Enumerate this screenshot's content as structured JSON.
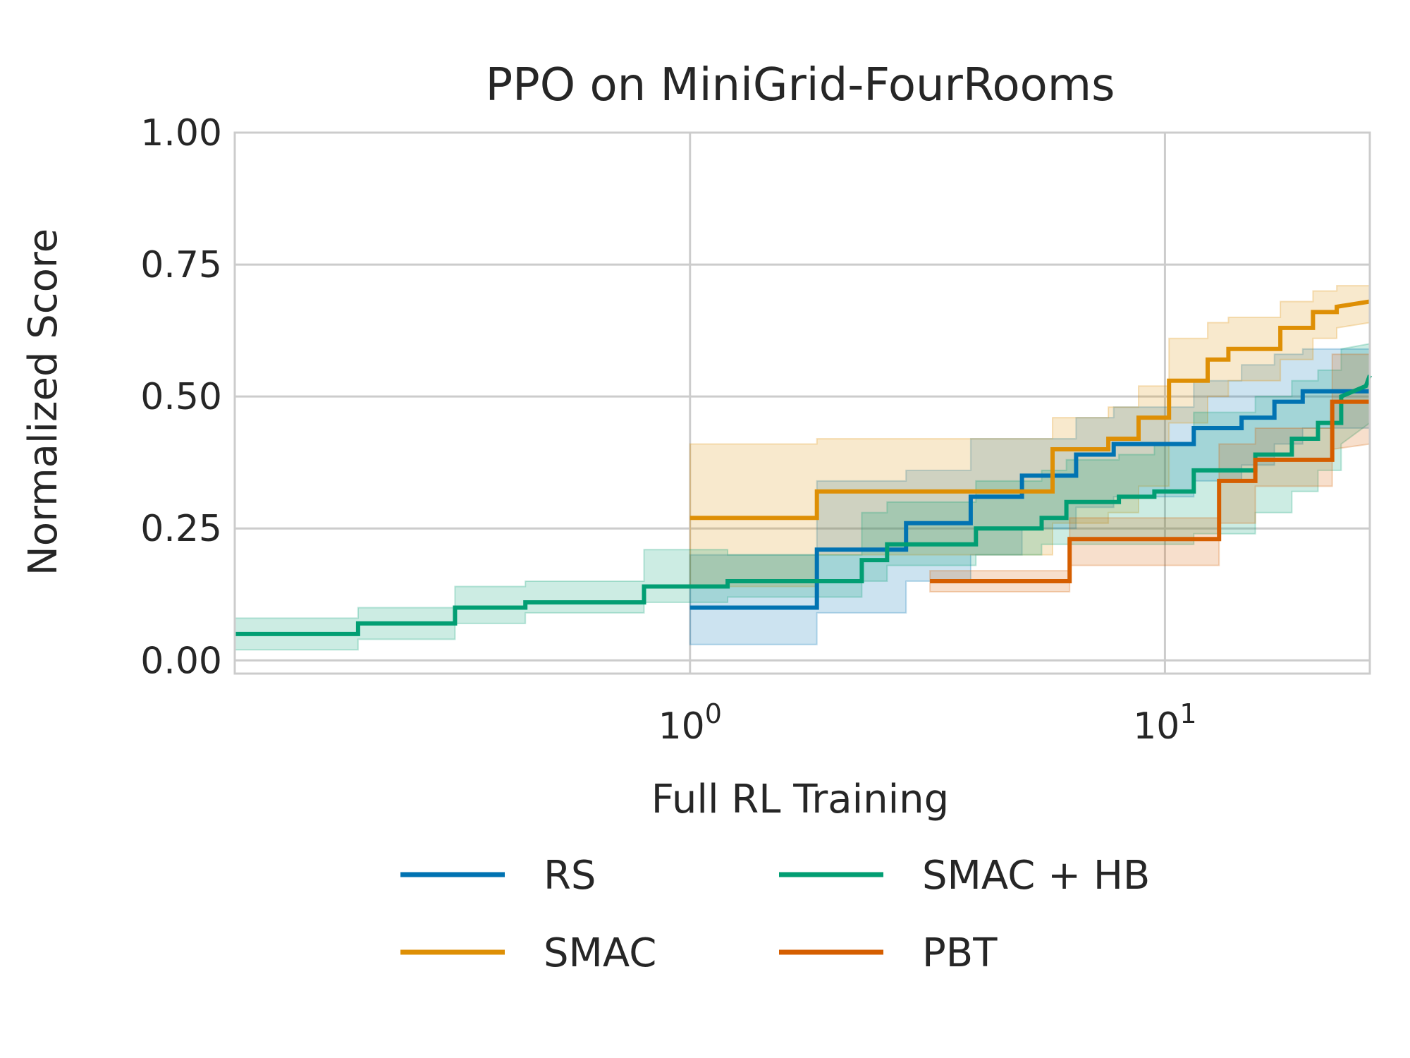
{
  "chart_data": {
    "type": "line",
    "title": "PPO on MiniGrid-FourRooms",
    "xlabel": "Full RL Training",
    "ylabel": "Normalized Score",
    "xscale": "log",
    "xlim": [
      0.11,
      27
    ],
    "ylim": [
      -0.025,
      1.0
    ],
    "yticks": [
      {
        "value": 0.0,
        "label": "0.00"
      },
      {
        "value": 0.25,
        "label": "0.25"
      },
      {
        "value": 0.5,
        "label": "0.50"
      },
      {
        "value": 0.75,
        "label": "0.75"
      },
      {
        "value": 1.0,
        "label": "1.00"
      }
    ],
    "xticks": [
      {
        "value": 1,
        "base": "10",
        "exp": "0"
      },
      {
        "value": 10,
        "base": "10",
        "exp": "1"
      }
    ],
    "grid": true,
    "legend": {
      "placement": "bottom",
      "columns": 2
    },
    "series": [
      {
        "name": "RS",
        "color": "#0173b2",
        "points": [
          [
            1.0,
            0.1
          ],
          [
            1.85,
            0.1
          ],
          [
            1.85,
            0.21
          ],
          [
            2.85,
            0.21
          ],
          [
            2.85,
            0.26
          ],
          [
            3.9,
            0.26
          ],
          [
            3.9,
            0.31
          ],
          [
            5.0,
            0.31
          ],
          [
            5.0,
            0.35
          ],
          [
            6.5,
            0.35
          ],
          [
            6.5,
            0.39
          ],
          [
            7.8,
            0.39
          ],
          [
            7.8,
            0.41
          ],
          [
            11.5,
            0.41
          ],
          [
            11.5,
            0.44
          ],
          [
            14.5,
            0.44
          ],
          [
            14.5,
            0.46
          ],
          [
            17.0,
            0.46
          ],
          [
            17.0,
            0.49
          ],
          [
            19.5,
            0.49
          ],
          [
            19.5,
            0.51
          ],
          [
            27.0,
            0.51
          ]
        ],
        "band": [
          [
            1.0,
            0.03,
            0.2
          ],
          [
            1.85,
            0.03,
            0.2
          ],
          [
            1.85,
            0.09,
            0.34
          ],
          [
            2.85,
            0.09,
            0.34
          ],
          [
            2.85,
            0.15,
            0.36
          ],
          [
            3.9,
            0.15,
            0.36
          ],
          [
            3.9,
            0.2,
            0.42
          ],
          [
            5.0,
            0.2,
            0.42
          ],
          [
            5.0,
            0.25,
            0.42
          ],
          [
            6.5,
            0.25,
            0.42
          ],
          [
            6.5,
            0.29,
            0.46
          ],
          [
            7.8,
            0.29,
            0.46
          ],
          [
            7.8,
            0.31,
            0.48
          ],
          [
            11.5,
            0.31,
            0.48
          ],
          [
            11.5,
            0.34,
            0.53
          ],
          [
            14.5,
            0.34,
            0.53
          ],
          [
            14.5,
            0.37,
            0.56
          ],
          [
            17.0,
            0.37,
            0.56
          ],
          [
            17.0,
            0.41,
            0.58
          ],
          [
            19.5,
            0.41,
            0.58
          ],
          [
            19.5,
            0.44,
            0.59
          ],
          [
            27.0,
            0.44,
            0.59
          ]
        ]
      },
      {
        "name": "SMAC",
        "color": "#de8f05",
        "points": [
          [
            1.0,
            0.27
          ],
          [
            1.85,
            0.27
          ],
          [
            1.85,
            0.32
          ],
          [
            5.8,
            0.32
          ],
          [
            5.8,
            0.4
          ],
          [
            7.6,
            0.4
          ],
          [
            7.6,
            0.42
          ],
          [
            8.8,
            0.42
          ],
          [
            8.8,
            0.46
          ],
          [
            10.2,
            0.46
          ],
          [
            10.2,
            0.53
          ],
          [
            12.3,
            0.53
          ],
          [
            12.3,
            0.57
          ],
          [
            13.6,
            0.57
          ],
          [
            13.6,
            0.59
          ],
          [
            17.5,
            0.59
          ],
          [
            17.5,
            0.63
          ],
          [
            20.5,
            0.63
          ],
          [
            20.5,
            0.66
          ],
          [
            23.0,
            0.66
          ],
          [
            23.0,
            0.67
          ],
          [
            27.0,
            0.68
          ]
        ],
        "band": [
          [
            1.0,
            0.14,
            0.41
          ],
          [
            1.85,
            0.14,
            0.41
          ],
          [
            1.85,
            0.2,
            0.42
          ],
          [
            5.8,
            0.2,
            0.42
          ],
          [
            5.8,
            0.26,
            0.46
          ],
          [
            7.6,
            0.26,
            0.46
          ],
          [
            7.6,
            0.28,
            0.48
          ],
          [
            8.8,
            0.28,
            0.48
          ],
          [
            8.8,
            0.33,
            0.52
          ],
          [
            10.2,
            0.33,
            0.52
          ],
          [
            10.2,
            0.45,
            0.61
          ],
          [
            12.3,
            0.45,
            0.61
          ],
          [
            12.3,
            0.5,
            0.64
          ],
          [
            13.6,
            0.5,
            0.64
          ],
          [
            13.6,
            0.53,
            0.65
          ],
          [
            17.5,
            0.53,
            0.65
          ],
          [
            17.5,
            0.57,
            0.68
          ],
          [
            20.5,
            0.57,
            0.68
          ],
          [
            20.5,
            0.61,
            0.7
          ],
          [
            23.0,
            0.61,
            0.7
          ],
          [
            23.0,
            0.63,
            0.71
          ],
          [
            27.0,
            0.64,
            0.71
          ]
        ]
      },
      {
        "name": "SMAC + HB",
        "color": "#029e73",
        "points": [
          [
            0.11,
            0.05
          ],
          [
            0.2,
            0.05
          ],
          [
            0.2,
            0.07
          ],
          [
            0.32,
            0.07
          ],
          [
            0.32,
            0.1
          ],
          [
            0.45,
            0.1
          ],
          [
            0.45,
            0.11
          ],
          [
            0.8,
            0.11
          ],
          [
            0.8,
            0.14
          ],
          [
            1.2,
            0.14
          ],
          [
            1.2,
            0.15
          ],
          [
            2.3,
            0.15
          ],
          [
            2.3,
            0.19
          ],
          [
            2.6,
            0.19
          ],
          [
            2.6,
            0.22
          ],
          [
            4.0,
            0.22
          ],
          [
            4.0,
            0.25
          ],
          [
            5.5,
            0.25
          ],
          [
            5.5,
            0.27
          ],
          [
            6.2,
            0.27
          ],
          [
            6.2,
            0.3
          ],
          [
            8.0,
            0.3
          ],
          [
            8.0,
            0.31
          ],
          [
            9.5,
            0.31
          ],
          [
            9.5,
            0.32
          ],
          [
            11.5,
            0.32
          ],
          [
            11.5,
            0.36
          ],
          [
            15.5,
            0.36
          ],
          [
            15.5,
            0.39
          ],
          [
            18.5,
            0.39
          ],
          [
            18.5,
            0.42
          ],
          [
            21.0,
            0.42
          ],
          [
            21.0,
            0.45
          ],
          [
            23.5,
            0.45
          ],
          [
            23.5,
            0.5
          ],
          [
            26.5,
            0.52
          ],
          [
            27.0,
            0.54
          ]
        ],
        "band": [
          [
            0.11,
            0.02,
            0.08
          ],
          [
            0.2,
            0.02,
            0.08
          ],
          [
            0.2,
            0.04,
            0.1
          ],
          [
            0.32,
            0.04,
            0.1
          ],
          [
            0.32,
            0.07,
            0.14
          ],
          [
            0.45,
            0.07,
            0.14
          ],
          [
            0.45,
            0.09,
            0.15
          ],
          [
            0.8,
            0.09,
            0.15
          ],
          [
            0.8,
            0.11,
            0.21
          ],
          [
            1.2,
            0.11,
            0.21
          ],
          [
            1.2,
            0.12,
            0.2
          ],
          [
            2.3,
            0.12,
            0.2
          ],
          [
            2.3,
            0.15,
            0.28
          ],
          [
            2.6,
            0.15,
            0.28
          ],
          [
            2.6,
            0.18,
            0.3
          ],
          [
            4.0,
            0.18,
            0.3
          ],
          [
            4.0,
            0.2,
            0.34
          ],
          [
            5.5,
            0.2,
            0.34
          ],
          [
            5.5,
            0.22,
            0.36
          ],
          [
            6.2,
            0.22,
            0.36
          ],
          [
            6.2,
            0.22,
            0.38
          ],
          [
            8.0,
            0.22,
            0.38
          ],
          [
            8.0,
            0.22,
            0.39
          ],
          [
            9.5,
            0.22,
            0.39
          ],
          [
            9.5,
            0.22,
            0.41
          ],
          [
            11.5,
            0.22,
            0.41
          ],
          [
            11.5,
            0.24,
            0.47
          ],
          [
            15.5,
            0.24,
            0.47
          ],
          [
            15.5,
            0.28,
            0.5
          ],
          [
            18.5,
            0.28,
            0.5
          ],
          [
            18.5,
            0.32,
            0.53
          ],
          [
            21.0,
            0.32,
            0.53
          ],
          [
            21.0,
            0.36,
            0.55
          ],
          [
            23.5,
            0.36,
            0.55
          ],
          [
            23.5,
            0.41,
            0.59
          ],
          [
            27.0,
            0.45,
            0.6
          ]
        ]
      },
      {
        "name": "PBT",
        "color": "#d55e00",
        "points": [
          [
            3.2,
            0.15
          ],
          [
            6.3,
            0.15
          ],
          [
            6.3,
            0.23
          ],
          [
            13.0,
            0.23
          ],
          [
            13.0,
            0.34
          ],
          [
            15.5,
            0.34
          ],
          [
            15.5,
            0.38
          ],
          [
            22.5,
            0.38
          ],
          [
            22.5,
            0.49
          ],
          [
            27.0,
            0.49
          ]
        ],
        "band": [
          [
            3.2,
            0.13,
            0.17
          ],
          [
            6.3,
            0.13,
            0.17
          ],
          [
            6.3,
            0.18,
            0.27
          ],
          [
            13.0,
            0.18,
            0.27
          ],
          [
            13.0,
            0.26,
            0.41
          ],
          [
            15.5,
            0.26,
            0.41
          ],
          [
            15.5,
            0.33,
            0.44
          ],
          [
            22.5,
            0.33,
            0.44
          ],
          [
            22.5,
            0.4,
            0.58
          ],
          [
            27.0,
            0.41,
            0.58
          ]
        ]
      }
    ]
  }
}
